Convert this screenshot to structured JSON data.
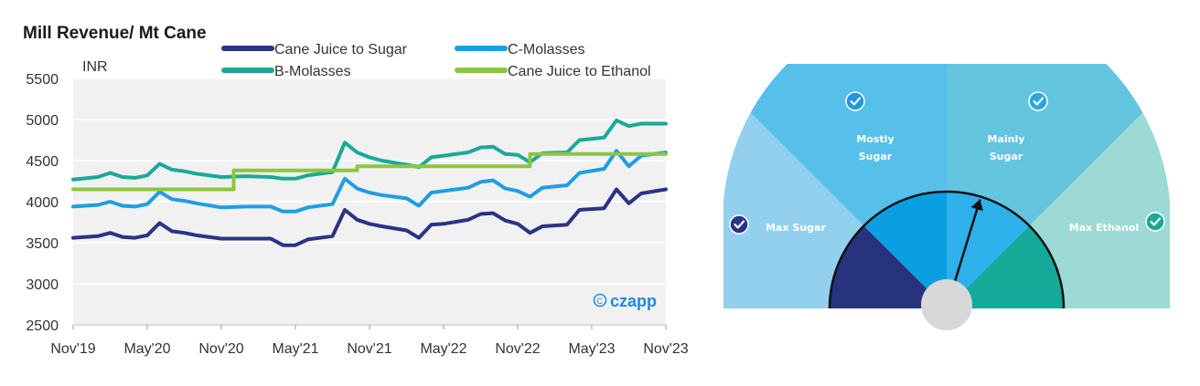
{
  "chart_data": {
    "type": "line",
    "title": "Mill Revenue/ Mt Cane",
    "ylabel": "INR",
    "xlabel": "",
    "ylim": [
      2500,
      5500
    ],
    "yticks": [
      2500,
      3000,
      3500,
      4000,
      4500,
      5000,
      5500
    ],
    "xticks": [
      "Nov'19",
      "May'20",
      "Nov'20",
      "May'21",
      "Nov'21",
      "May'22",
      "Nov'22",
      "May'23",
      "Nov'23"
    ],
    "grid": true,
    "legend_position": "top",
    "watermark": "czapp",
    "series": [
      {
        "name": "Cane Juice to Sugar",
        "color": "#2b3384",
        "points": [
          [
            "Nov'19",
            3560
          ],
          [
            "Jan'20",
            3580
          ],
          [
            "Feb'20",
            3620
          ],
          [
            "Mar'20",
            3570
          ],
          [
            "Apr'20",
            3560
          ],
          [
            "May'20",
            3590
          ],
          [
            "Jun'20",
            3740
          ],
          [
            "Jul'20",
            3640
          ],
          [
            "Aug'20",
            3620
          ],
          [
            "Sep'20",
            3590
          ],
          [
            "Nov'20",
            3550
          ],
          [
            "Jan'21",
            3550
          ],
          [
            "Mar'21",
            3550
          ],
          [
            "Apr'21",
            3470
          ],
          [
            "May'21",
            3470
          ],
          [
            "Jun'21",
            3540
          ],
          [
            "Aug'21",
            3580
          ],
          [
            "Sep'21",
            3900
          ],
          [
            "Oct'21",
            3780
          ],
          [
            "Nov'21",
            3730
          ],
          [
            "Dec'21",
            3700
          ],
          [
            "Feb'22",
            3650
          ],
          [
            "Mar'22",
            3560
          ],
          [
            "Apr'22",
            3720
          ],
          [
            "May'22",
            3730
          ],
          [
            "Jul'22",
            3780
          ],
          [
            "Aug'22",
            3850
          ],
          [
            "Sep'22",
            3860
          ],
          [
            "Oct'22",
            3770
          ],
          [
            "Nov'22",
            3730
          ],
          [
            "Dec'22",
            3620
          ],
          [
            "Jan'23",
            3700
          ],
          [
            "Mar'23",
            3720
          ],
          [
            "Apr'23",
            3900
          ],
          [
            "Jun'23",
            3920
          ],
          [
            "Jul'23",
            4150
          ],
          [
            "Aug'23",
            3980
          ],
          [
            "Sep'23",
            4100
          ],
          [
            "Nov'23",
            4150
          ]
        ]
      },
      {
        "name": "C-Molasses",
        "color": "#1f9ee1",
        "points": [
          [
            "Nov'19",
            3940
          ],
          [
            "Jan'20",
            3960
          ],
          [
            "Feb'20",
            4000
          ],
          [
            "Mar'20",
            3950
          ],
          [
            "Apr'20",
            3940
          ],
          [
            "May'20",
            3970
          ],
          [
            "Jun'20",
            4120
          ],
          [
            "Jul'20",
            4030
          ],
          [
            "Aug'20",
            4010
          ],
          [
            "Sep'20",
            3980
          ],
          [
            "Nov'20",
            3930
          ],
          [
            "Jan'21",
            3940
          ],
          [
            "Mar'21",
            3940
          ],
          [
            "Apr'21",
            3880
          ],
          [
            "May'21",
            3880
          ],
          [
            "Jun'21",
            3930
          ],
          [
            "Aug'21",
            3970
          ],
          [
            "Sep'21",
            4280
          ],
          [
            "Oct'21",
            4160
          ],
          [
            "Nov'21",
            4110
          ],
          [
            "Dec'21",
            4080
          ],
          [
            "Feb'22",
            4040
          ],
          [
            "Mar'22",
            3950
          ],
          [
            "Apr'22",
            4110
          ],
          [
            "May'22",
            4130
          ],
          [
            "Jul'22",
            4170
          ],
          [
            "Aug'22",
            4240
          ],
          [
            "Sep'22",
            4260
          ],
          [
            "Oct'22",
            4160
          ],
          [
            "Nov'22",
            4130
          ],
          [
            "Dec'22",
            4060
          ],
          [
            "Jan'23",
            4170
          ],
          [
            "Mar'23",
            4200
          ],
          [
            "Apr'23",
            4350
          ],
          [
            "Jun'23",
            4400
          ],
          [
            "Jul'23",
            4620
          ],
          [
            "Aug'23",
            4430
          ],
          [
            "Sep'23",
            4560
          ],
          [
            "Nov'23",
            4600
          ]
        ]
      },
      {
        "name": "B-Molasses",
        "color": "#1aa999",
        "points": [
          [
            "Nov'19",
            4270
          ],
          [
            "Jan'20",
            4300
          ],
          [
            "Feb'20",
            4350
          ],
          [
            "Mar'20",
            4300
          ],
          [
            "Apr'20",
            4290
          ],
          [
            "May'20",
            4320
          ],
          [
            "Jun'20",
            4460
          ],
          [
            "Jul'20",
            4390
          ],
          [
            "Aug'20",
            4370
          ],
          [
            "Sep'20",
            4340
          ],
          [
            "Nov'20",
            4300
          ],
          [
            "Jan'21",
            4310
          ],
          [
            "Mar'21",
            4300
          ],
          [
            "Apr'21",
            4280
          ],
          [
            "May'21",
            4280
          ],
          [
            "Jun'21",
            4320
          ],
          [
            "Aug'21",
            4360
          ],
          [
            "Sep'21",
            4720
          ],
          [
            "Oct'21",
            4600
          ],
          [
            "Nov'21",
            4540
          ],
          [
            "Dec'21",
            4500
          ],
          [
            "Feb'22",
            4450
          ],
          [
            "Mar'22",
            4420
          ],
          [
            "Apr'22",
            4540
          ],
          [
            "May'22",
            4560
          ],
          [
            "Jul'22",
            4600
          ],
          [
            "Aug'22",
            4660
          ],
          [
            "Sep'22",
            4670
          ],
          [
            "Oct'22",
            4580
          ],
          [
            "Nov'22",
            4570
          ],
          [
            "Dec'22",
            4480
          ],
          [
            "Jan'23",
            4590
          ],
          [
            "Mar'23",
            4600
          ],
          [
            "Apr'23",
            4750
          ],
          [
            "Jun'23",
            4780
          ],
          [
            "Jul'23",
            4990
          ],
          [
            "Aug'23",
            4920
          ],
          [
            "Sep'23",
            4950
          ],
          [
            "Nov'23",
            4950
          ]
        ]
      },
      {
        "name": "Cane Juice to Ethanol",
        "color": "#8cc63f",
        "points": [
          [
            "Nov'19",
            4150
          ],
          [
            "Dec'20",
            4150
          ],
          [
            "Dec'20",
            4380
          ],
          [
            "Oct'21",
            4380
          ],
          [
            "Oct'21",
            4430
          ],
          [
            "Dec'22",
            4430
          ],
          [
            "Dec'22",
            4580
          ],
          [
            "Nov'23",
            4580
          ]
        ]
      }
    ]
  },
  "gauge": {
    "brand": "czapp",
    "segments": [
      {
        "label": "Max Sugar",
        "color": "#93d0ee",
        "checked": true
      },
      {
        "label": "Mostly Sugar",
        "color": "#56bfea",
        "checked": true
      },
      {
        "label": "Mainly Sugar",
        "color": "#63c5e0",
        "checked": true
      },
      {
        "label": "Max Ethanol",
        "color": "#9edad5",
        "checked": true
      }
    ],
    "label_lines": [
      [
        "Max Sugar"
      ],
      [
        "Mostly",
        "Sugar"
      ],
      [
        "Mainly",
        "Sugar"
      ],
      [
        "Max Ethanol"
      ]
    ],
    "inner_colors": [
      "#27337f",
      "#0a9fe0",
      "#2eb1ea",
      "#14a998"
    ],
    "check_colors": [
      "#2b3384",
      "#2196d9",
      "#2aa8dc",
      "#1aa999"
    ],
    "needle_segment": "Mainly Sugar"
  }
}
